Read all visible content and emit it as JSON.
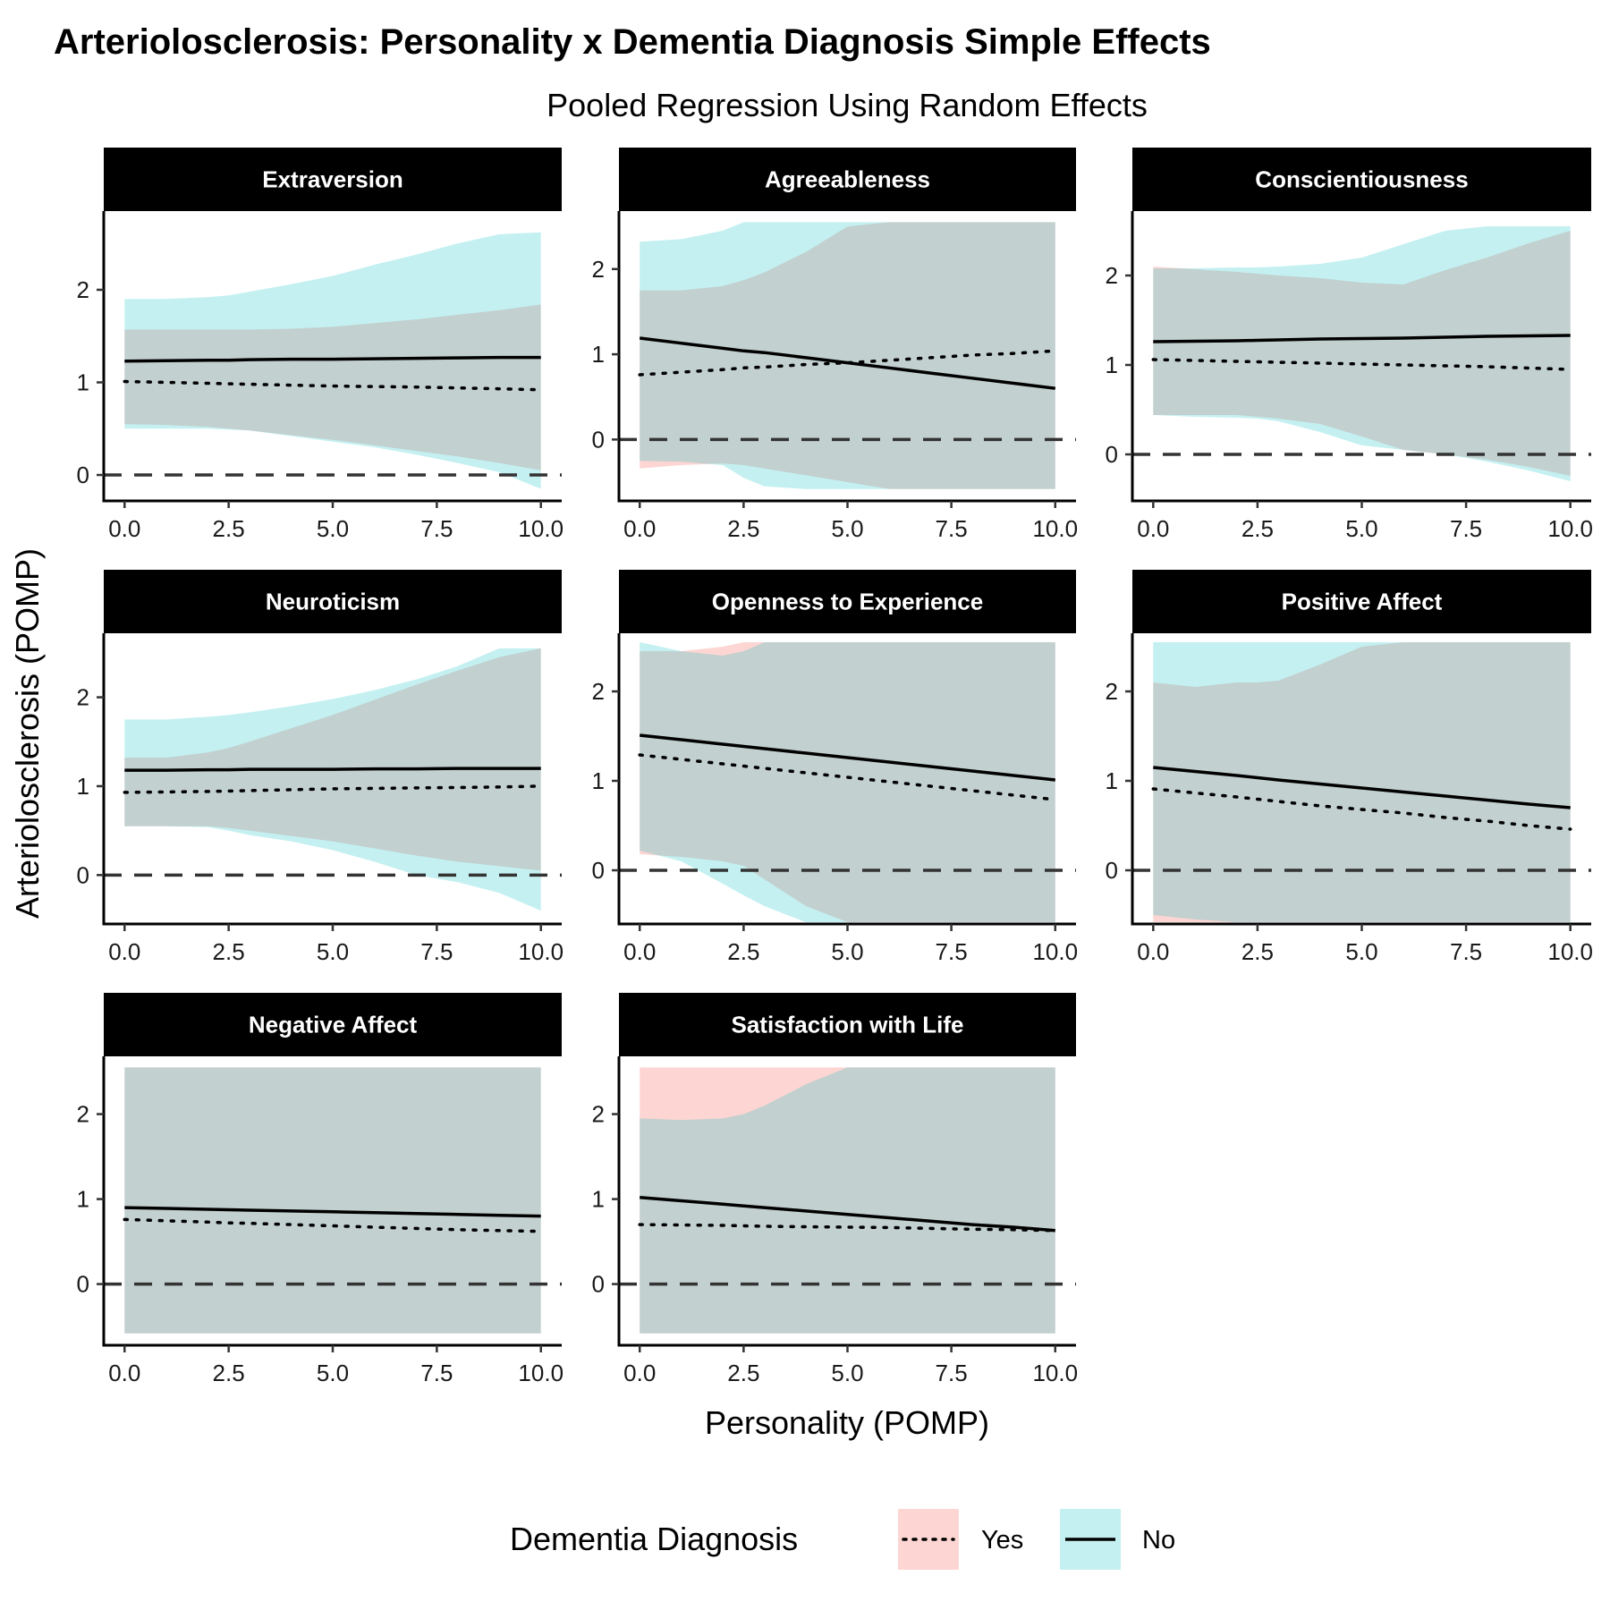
{
  "title": "Arteriolosclerosis: Personality x Dementia Diagnosis Simple Effects",
  "subtitle": "Pooled Regression Using Random Effects",
  "xlabel": "Personality (POMP)",
  "ylabel": "Arteriolosclerosis (POMP)",
  "legend": {
    "title": "Dementia Diagnosis",
    "placement": "bottom",
    "items": [
      {
        "label": "Yes",
        "line": "dotted",
        "fill": "#F8766D"
      },
      {
        "label": "No",
        "line": "solid",
        "fill": "#00BFC4"
      }
    ]
  },
  "colors": {
    "yes_ribbon": "#F8766D",
    "no_ribbon": "#00BFC4",
    "overlap": "#C0CDCD",
    "strip": "#000000"
  },
  "chart_data": {
    "type": "line",
    "grid": false,
    "xlim": [
      -0.5,
      10.5
    ],
    "xticks": [
      0,
      2.5,
      5,
      7.5,
      10
    ],
    "xtick_labels": [
      "0.0",
      "2.5",
      "5.0",
      "7.5",
      "10.0"
    ],
    "panels": [
      {
        "name": "Extraversion",
        "ylim": [
          -0.28,
          2.85
        ],
        "yticks": [
          0,
          1,
          2
        ],
        "x": [
          0,
          1,
          2,
          2.5,
          3,
          4,
          5,
          6,
          7,
          8,
          9,
          10
        ],
        "yes": {
          "fit": [
            1.01,
            1.0,
            0.99,
            0.985,
            0.98,
            0.97,
            0.96,
            0.955,
            0.95,
            0.94,
            0.93,
            0.92
          ],
          "lower": [
            0.55,
            0.54,
            0.52,
            0.5,
            0.48,
            0.43,
            0.38,
            0.32,
            0.26,
            0.2,
            0.13,
            0.05
          ],
          "upper": [
            1.57,
            1.57,
            1.57,
            1.57,
            1.57,
            1.58,
            1.6,
            1.64,
            1.68,
            1.73,
            1.78,
            1.84
          ]
        },
        "no": {
          "fit": [
            1.23,
            1.235,
            1.24,
            1.24,
            1.245,
            1.25,
            1.25,
            1.255,
            1.26,
            1.265,
            1.27,
            1.27
          ],
          "lower": [
            0.5,
            0.5,
            0.5,
            0.49,
            0.48,
            0.42,
            0.36,
            0.3,
            0.22,
            0.13,
            0.03,
            -0.15
          ],
          "upper": [
            1.9,
            1.9,
            1.92,
            1.94,
            1.98,
            2.06,
            2.15,
            2.27,
            2.38,
            2.5,
            2.6,
            2.62
          ]
        }
      },
      {
        "name": "Agreeableness",
        "ylim": [
          -0.72,
          2.68
        ],
        "yticks": [
          0,
          1,
          2
        ],
        "x": [
          0,
          1,
          2,
          2.5,
          3,
          4,
          5,
          6,
          7,
          8,
          9,
          10
        ],
        "yes": {
          "fit": [
            0.76,
            0.79,
            0.82,
            0.84,
            0.85,
            0.88,
            0.9,
            0.93,
            0.96,
            0.99,
            1.01,
            1.04
          ],
          "lower": [
            -0.34,
            -0.3,
            -0.28,
            -0.3,
            -0.34,
            -0.42,
            -0.5,
            -0.58,
            -0.58,
            -0.58,
            -0.58,
            -0.58
          ],
          "upper": [
            1.75,
            1.75,
            1.8,
            1.87,
            1.96,
            2.2,
            2.5,
            2.55,
            2.55,
            2.55,
            2.55,
            2.55
          ]
        },
        "no": {
          "fit": [
            1.19,
            1.13,
            1.07,
            1.04,
            1.02,
            0.96,
            0.9,
            0.84,
            0.78,
            0.72,
            0.66,
            0.6
          ],
          "lower": [
            -0.25,
            -0.26,
            -0.3,
            -0.45,
            -0.55,
            -0.58,
            -0.58,
            -0.58,
            -0.58,
            -0.58,
            -0.58,
            -0.58
          ],
          "upper": [
            2.32,
            2.35,
            2.45,
            2.55,
            2.55,
            2.55,
            2.55,
            2.55,
            2.55,
            2.55,
            2.55,
            2.55
          ]
        }
      },
      {
        "name": "Conscientiousness",
        "ylim": [
          -0.52,
          2.72
        ],
        "yticks": [
          0,
          1,
          2
        ],
        "x": [
          0,
          1,
          2,
          2.5,
          3,
          4,
          5,
          6,
          7,
          8,
          9,
          10
        ],
        "yes": {
          "fit": [
            1.06,
            1.05,
            1.04,
            1.035,
            1.03,
            1.02,
            1.01,
            1.0,
            0.99,
            0.98,
            0.965,
            0.95
          ],
          "lower": [
            0.44,
            0.44,
            0.44,
            0.42,
            0.4,
            0.34,
            0.2,
            0.05,
            0.0,
            -0.06,
            -0.14,
            -0.24
          ],
          "upper": [
            2.1,
            2.07,
            2.04,
            2.02,
            2.0,
            1.97,
            1.92,
            1.9,
            2.06,
            2.2,
            2.36,
            2.5
          ]
        },
        "no": {
          "fit": [
            1.26,
            1.265,
            1.27,
            1.275,
            1.28,
            1.29,
            1.295,
            1.3,
            1.31,
            1.32,
            1.325,
            1.33
          ],
          "lower": [
            0.44,
            0.42,
            0.41,
            0.4,
            0.37,
            0.25,
            0.1,
            0.05,
            0.0,
            -0.08,
            -0.18,
            -0.3
          ],
          "upper": [
            2.08,
            2.08,
            2.09,
            2.09,
            2.1,
            2.13,
            2.2,
            2.35,
            2.5,
            2.55,
            2.55,
            2.55
          ]
        }
      },
      {
        "name": "Neuroticism",
        "ylim": [
          -0.55,
          2.72
        ],
        "yticks": [
          0,
          1,
          2
        ],
        "x": [
          0,
          1,
          2,
          2.5,
          3,
          4,
          5,
          6,
          7,
          8,
          9,
          10
        ],
        "yes": {
          "fit": [
            0.93,
            0.935,
            0.94,
            0.945,
            0.95,
            0.96,
            0.97,
            0.975,
            0.98,
            0.985,
            0.99,
            1.0
          ],
          "lower": [
            0.55,
            0.55,
            0.55,
            0.53,
            0.5,
            0.44,
            0.38,
            0.3,
            0.22,
            0.15,
            0.1,
            0.05
          ],
          "upper": [
            1.32,
            1.32,
            1.38,
            1.43,
            1.5,
            1.65,
            1.8,
            1.97,
            2.14,
            2.3,
            2.45,
            2.55
          ]
        },
        "no": {
          "fit": [
            1.18,
            1.18,
            1.185,
            1.185,
            1.19,
            1.19,
            1.19,
            1.195,
            1.195,
            1.2,
            1.2,
            1.2
          ],
          "lower": [
            0.55,
            0.55,
            0.54,
            0.5,
            0.45,
            0.38,
            0.28,
            0.15,
            0.0,
            -0.08,
            -0.2,
            -0.4
          ],
          "upper": [
            1.75,
            1.75,
            1.78,
            1.8,
            1.83,
            1.9,
            1.98,
            2.08,
            2.2,
            2.35,
            2.55,
            2.55
          ]
        }
      },
      {
        "name": "Openness to Experience",
        "ylim": [
          -0.6,
          2.65
        ],
        "yticks": [
          0,
          1,
          2
        ],
        "x": [
          0,
          1,
          2,
          2.5,
          3,
          4,
          5,
          6,
          7,
          8,
          9,
          10
        ],
        "yes": {
          "fit": [
            1.29,
            1.24,
            1.19,
            1.165,
            1.14,
            1.09,
            1.04,
            0.99,
            0.94,
            0.89,
            0.84,
            0.79
          ],
          "lower": [
            0.18,
            0.15,
            0.1,
            0.05,
            -0.1,
            -0.4,
            -0.58,
            -0.58,
            -0.58,
            -0.58,
            -0.58,
            -0.58
          ],
          "upper": [
            2.45,
            2.45,
            2.5,
            2.55,
            2.55,
            2.55,
            2.55,
            2.55,
            2.55,
            2.55,
            2.55,
            2.55
          ]
        },
        "no": {
          "fit": [
            1.51,
            1.46,
            1.41,
            1.385,
            1.36,
            1.31,
            1.26,
            1.21,
            1.16,
            1.11,
            1.06,
            1.01
          ],
          "lower": [
            0.22,
            0.1,
            -0.15,
            -0.28,
            -0.4,
            -0.58,
            -0.58,
            -0.58,
            -0.58,
            -0.58,
            -0.58,
            -0.58
          ],
          "upper": [
            2.55,
            2.45,
            2.4,
            2.45,
            2.55,
            2.55,
            2.55,
            2.55,
            2.55,
            2.55,
            2.55,
            2.55
          ]
        }
      },
      {
        "name": "Positive Affect",
        "ylim": [
          -0.6,
          2.65
        ],
        "yticks": [
          0,
          1,
          2
        ],
        "x": [
          0,
          1,
          2,
          2.5,
          3,
          4,
          5,
          6,
          7,
          8,
          9,
          10
        ],
        "yes": {
          "fit": [
            0.91,
            0.865,
            0.82,
            0.795,
            0.77,
            0.72,
            0.68,
            0.64,
            0.59,
            0.55,
            0.5,
            0.46
          ],
          "lower": [
            -0.58,
            -0.58,
            -0.58,
            -0.58,
            -0.58,
            -0.58,
            -0.58,
            -0.58,
            -0.58,
            -0.58,
            -0.58,
            -0.58
          ],
          "upper": [
            2.1,
            2.05,
            2.1,
            2.1,
            2.12,
            2.3,
            2.5,
            2.55,
            2.55,
            2.55,
            2.55,
            2.55
          ]
        },
        "no": {
          "fit": [
            1.15,
            1.105,
            1.06,
            1.035,
            1.01,
            0.965,
            0.92,
            0.875,
            0.83,
            0.785,
            0.74,
            0.7
          ],
          "lower": [
            -0.5,
            -0.55,
            -0.58,
            -0.58,
            -0.58,
            -0.58,
            -0.58,
            -0.58,
            -0.58,
            -0.58,
            -0.58,
            -0.58
          ],
          "upper": [
            2.55,
            2.55,
            2.55,
            2.55,
            2.55,
            2.55,
            2.55,
            2.55,
            2.55,
            2.55,
            2.55,
            2.55
          ]
        }
      },
      {
        "name": "Negative Affect",
        "ylim": [
          -0.72,
          2.68
        ],
        "yticks": [
          0,
          1,
          2
        ],
        "x": [
          0,
          1,
          2,
          2.5,
          3,
          4,
          5,
          6,
          7,
          8,
          9,
          10
        ],
        "yes": {
          "fit": [
            0.76,
            0.745,
            0.73,
            0.72,
            0.715,
            0.7,
            0.685,
            0.67,
            0.655,
            0.64,
            0.63,
            0.62
          ],
          "lower": [
            -0.58,
            -0.58,
            -0.58,
            -0.58,
            -0.58,
            -0.58,
            -0.58,
            -0.58,
            -0.58,
            -0.58,
            -0.58,
            -0.58
          ],
          "upper": [
            2.55,
            2.55,
            2.55,
            2.55,
            2.55,
            2.55,
            2.55,
            2.55,
            2.55,
            2.55,
            2.55,
            2.55
          ]
        },
        "no": {
          "fit": [
            0.9,
            0.89,
            0.88,
            0.875,
            0.87,
            0.86,
            0.85,
            0.84,
            0.83,
            0.82,
            0.81,
            0.8
          ],
          "lower": [
            -0.58,
            -0.58,
            -0.58,
            -0.58,
            -0.58,
            -0.58,
            -0.58,
            -0.58,
            -0.58,
            -0.58,
            -0.58,
            -0.58
          ],
          "upper": [
            2.55,
            2.55,
            2.55,
            2.55,
            2.55,
            2.55,
            2.55,
            2.55,
            2.55,
            2.55,
            2.55,
            2.55
          ]
        }
      },
      {
        "name": "Satisfaction with Life",
        "ylim": [
          -0.72,
          2.68
        ],
        "yticks": [
          0,
          1,
          2
        ],
        "x": [
          0,
          1,
          2,
          2.5,
          3,
          4,
          5,
          6,
          7,
          8,
          9,
          10
        ],
        "yes": {
          "fit": [
            0.7,
            0.695,
            0.69,
            0.685,
            0.68,
            0.675,
            0.67,
            0.665,
            0.655,
            0.645,
            0.64,
            0.63
          ],
          "lower": [
            -0.58,
            -0.58,
            -0.58,
            -0.58,
            -0.58,
            -0.58,
            -0.58,
            -0.58,
            -0.58,
            -0.58,
            -0.58,
            -0.58
          ],
          "upper": [
            2.55,
            2.55,
            2.55,
            2.55,
            2.55,
            2.55,
            2.55,
            2.55,
            2.55,
            2.55,
            2.55,
            2.55
          ]
        },
        "no": {
          "fit": [
            1.02,
            0.98,
            0.94,
            0.92,
            0.9,
            0.86,
            0.82,
            0.78,
            0.74,
            0.7,
            0.67,
            0.63
          ],
          "lower": [
            -0.58,
            -0.58,
            -0.58,
            -0.58,
            -0.58,
            -0.58,
            -0.58,
            -0.58,
            -0.58,
            -0.58,
            -0.58,
            -0.58
          ],
          "upper": [
            1.95,
            1.93,
            1.95,
            2.0,
            2.1,
            2.35,
            2.55,
            2.55,
            2.55,
            2.55,
            2.55,
            2.55
          ]
        }
      }
    ]
  }
}
